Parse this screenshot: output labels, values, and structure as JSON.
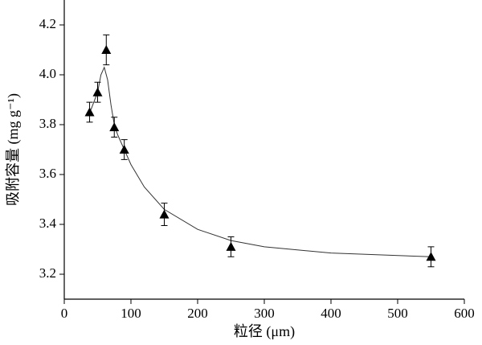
{
  "chart_data": {
    "type": "scatter",
    "x_label": "粒径 (μm)",
    "y_label": "吸附容量 (mg g⁻¹)",
    "xlim": [
      0,
      600
    ],
    "xticks": [
      0,
      100,
      200,
      300,
      400,
      500,
      600
    ],
    "ylim": [
      3.1,
      4.3
    ],
    "yticks": [
      3.2,
      3.4,
      3.6,
      3.8,
      {
        "value": 4,
        "label": "4.0"
      },
      4.2
    ],
    "color": "#000000",
    "points": {
      "x": [
        38,
        50,
        63,
        75,
        90,
        150,
        250,
        550
      ],
      "values": [
        3.85,
        3.93,
        4.1,
        3.79,
        3.7,
        3.44,
        3.31,
        3.27
      ],
      "errors": [
        0.04,
        0.04,
        0.06,
        0.04,
        0.04,
        0.045,
        0.04,
        0.04
      ]
    },
    "curve": {
      "x": [
        40,
        50,
        55,
        60,
        65,
        70,
        75,
        80,
        90,
        100,
        120,
        150,
        200,
        250,
        300,
        400,
        550
      ],
      "values": [
        3.86,
        3.93,
        4.0,
        4.03,
        3.98,
        3.88,
        3.8,
        3.76,
        3.7,
        3.64,
        3.55,
        3.46,
        3.38,
        3.335,
        3.31,
        3.285,
        3.27
      ]
    }
  }
}
